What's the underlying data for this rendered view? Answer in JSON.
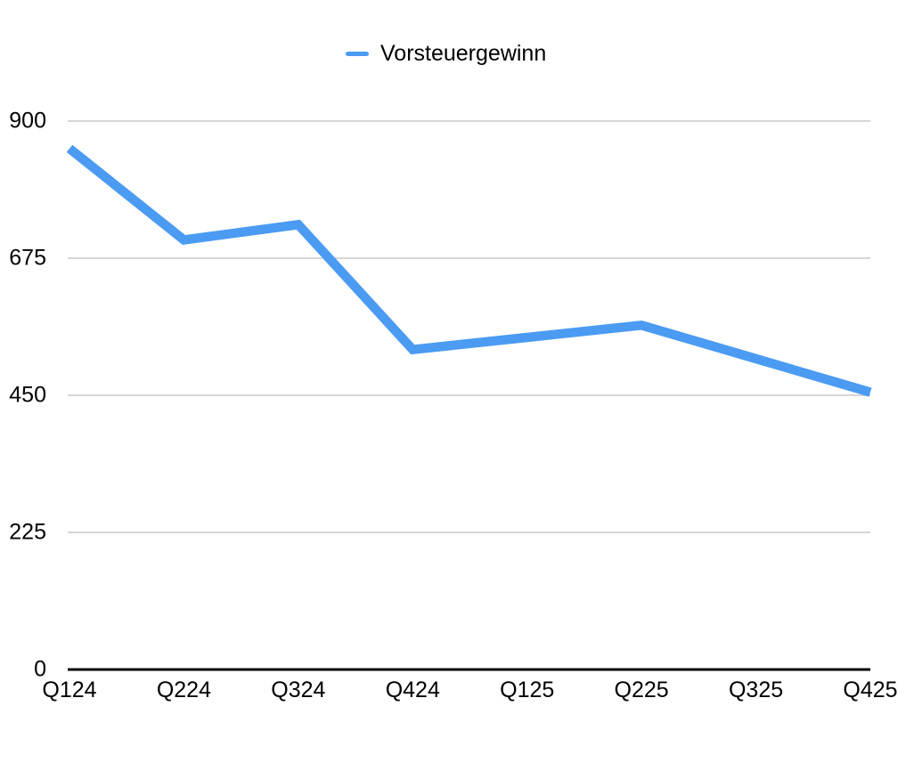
{
  "chart_data": {
    "type": "line",
    "title": "",
    "categories": [
      "Q124",
      "Q224",
      "Q324",
      "Q424",
      "Q125",
      "Q225",
      "Q325",
      "Q425"
    ],
    "series": [
      {
        "name": "Vorsteuergewinn",
        "values": [
          855,
          705,
          730,
          525,
          545,
          565,
          510,
          455
        ],
        "color": "#4B9BF2"
      }
    ],
    "xlabel": "",
    "ylabel": "",
    "ylim": [
      0,
      900
    ],
    "y_ticks": [
      0,
      225,
      450,
      675,
      900
    ],
    "grid": true,
    "legend_position": "top",
    "colors": {
      "line": "#4B9BF2",
      "grid": "#C9C9C9",
      "axis": "#000000",
      "text": "#000000",
      "background": "#FFFFFF"
    }
  }
}
